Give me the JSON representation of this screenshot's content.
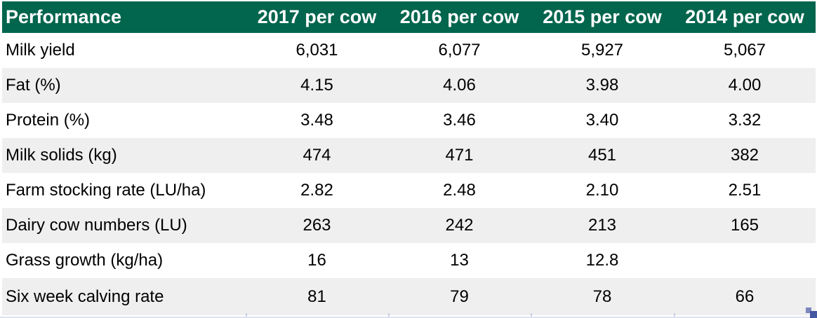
{
  "colors": {
    "header_bg": "#02654D",
    "header_text": "#FFFFFF",
    "row_band": "#EFEFEF",
    "row_bg": "#FFFFFF",
    "body_text": "#000000",
    "bottom_gridline": "#DFE3F2",
    "gridline_tick": "#C7D0E8",
    "handle_dark": "#4657A1",
    "handle_light": "#7B87BD"
  },
  "table": {
    "headers": [
      "Performance",
      "2017 per cow",
      "2016 per cow",
      "2015 per cow",
      "2014 per cow"
    ],
    "rows": [
      {
        "label": "Milk yield",
        "values": [
          "6,031",
          "6,077",
          "5,927",
          "5,067"
        ]
      },
      {
        "label": "Fat (%)",
        "values": [
          "4.15",
          "4.06",
          "3.98",
          "4.00"
        ]
      },
      {
        "label": "Protein (%)",
        "values": [
          "3.48",
          "3.46",
          "3.40",
          "3.32"
        ]
      },
      {
        "label": "Milk solids (kg)",
        "values": [
          "474",
          "471",
          "451",
          "382"
        ]
      },
      {
        "label": "Farm stocking rate (LU/ha)",
        "values": [
          "2.82",
          "2.48",
          "2.10",
          "2.51"
        ]
      },
      {
        "label": "Dairy cow numbers (LU)",
        "values": [
          "263",
          "242",
          "213",
          "165"
        ]
      },
      {
        "label": "Grass growth (kg/ha)",
        "values": [
          "16",
          "13",
          "12.8",
          ""
        ]
      },
      {
        "label": "Six week calving rate",
        "values": [
          "81",
          "79",
          "78",
          "66"
        ]
      }
    ]
  },
  "chart_data": {
    "type": "table",
    "columns": [
      "Performance",
      "2017 per cow",
      "2016 per cow",
      "2015 per cow",
      "2014 per cow"
    ],
    "rows": [
      [
        "Milk yield",
        6031,
        6077,
        5927,
        5067
      ],
      [
        "Fat (%)",
        4.15,
        4.06,
        3.98,
        4.0
      ],
      [
        "Protein (%)",
        3.48,
        3.46,
        3.4,
        3.32
      ],
      [
        "Milk solids (kg)",
        474,
        471,
        451,
        382
      ],
      [
        "Farm stocking rate (LU/ha)",
        2.82,
        2.48,
        2.1,
        2.51
      ],
      [
        "Dairy cow numbers (LU)",
        263,
        242,
        213,
        165
      ],
      [
        "Grass growth (kg/ha)",
        16,
        13,
        12.8,
        null
      ],
      [
        "Six week calving rate",
        81,
        79,
        78,
        66
      ]
    ]
  }
}
